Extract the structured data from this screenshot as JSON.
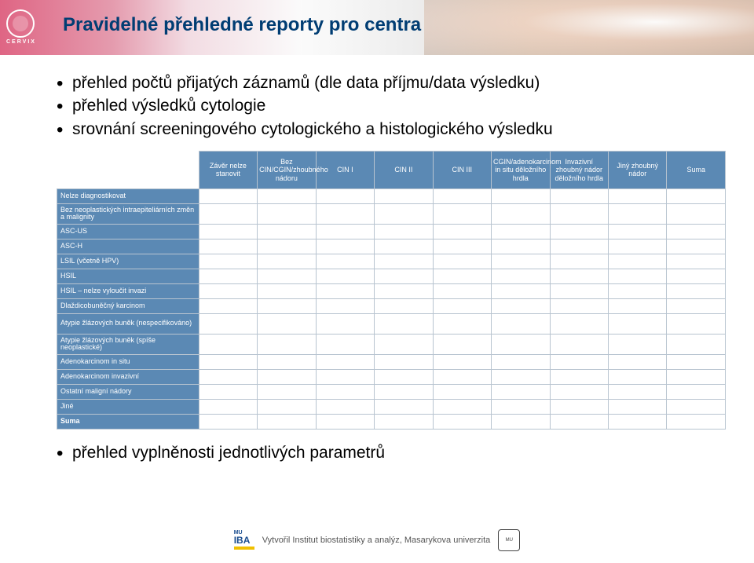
{
  "logo_text": "CERVIX",
  "page_title": "Pravidelné přehledné reporty pro centra",
  "bullets": [
    "přehled počtů přijatých záznamů (dle data příjmu/data výsledku)",
    "přehled výsledků cytologie",
    "srovnání screeningového cytologického a histologického výsledku"
  ],
  "bottom_bullet": "přehled vyplněnosti jednotlivých parametrů",
  "table": {
    "columns": [
      "Závěr nelze stanovit",
      "Bez CIN/CGIN/zhoubného nádoru",
      "CIN I",
      "CIN II",
      "CIN III",
      "CGIN/adenokarcinom in situ děložního hrdla",
      "Invazivní zhoubný nádor děložního hrdla",
      "Jiný zhoubný nádor",
      "Suma"
    ],
    "rows": [
      {
        "label": "Nelze diagnostikovat",
        "tall": false
      },
      {
        "label": "Bez neoplastických intraepiteliárních změn a malignity",
        "tall": true
      },
      {
        "label": "ASC-US",
        "tall": false
      },
      {
        "label": "ASC-H",
        "tall": false
      },
      {
        "label": "LSIL (včetně HPV)",
        "tall": false
      },
      {
        "label": "HSIL",
        "tall": false
      },
      {
        "label": "HSIL – nelze vyloučit invazi",
        "tall": false
      },
      {
        "label": "Dlaždicobuněčný karcinom",
        "tall": false
      },
      {
        "label": "Atypie žlázových buněk (nespecifikováno)",
        "tall": true
      },
      {
        "label": "Atypie žlázových buněk (spíše neoplastické)",
        "tall": true
      },
      {
        "label": "Adenokarcinom in situ",
        "tall": false
      },
      {
        "label": "Adenokarcinom invazivní",
        "tall": false
      },
      {
        "label": "Ostatní maligní nádory",
        "tall": false
      },
      {
        "label": "Jiné",
        "tall": false
      },
      {
        "label": "Suma",
        "tall": false,
        "sum": true
      }
    ],
    "header_bg": "#5b89b4",
    "border_color": "#b8c4d0"
  },
  "footer": {
    "iba_label": "IBA",
    "mu_label": "MU",
    "text": "Vytvořil Institut biostatistiky a analýz, Masarykova univerzita"
  },
  "colors": {
    "title": "#003d73",
    "table_header": "#5b89b4"
  }
}
